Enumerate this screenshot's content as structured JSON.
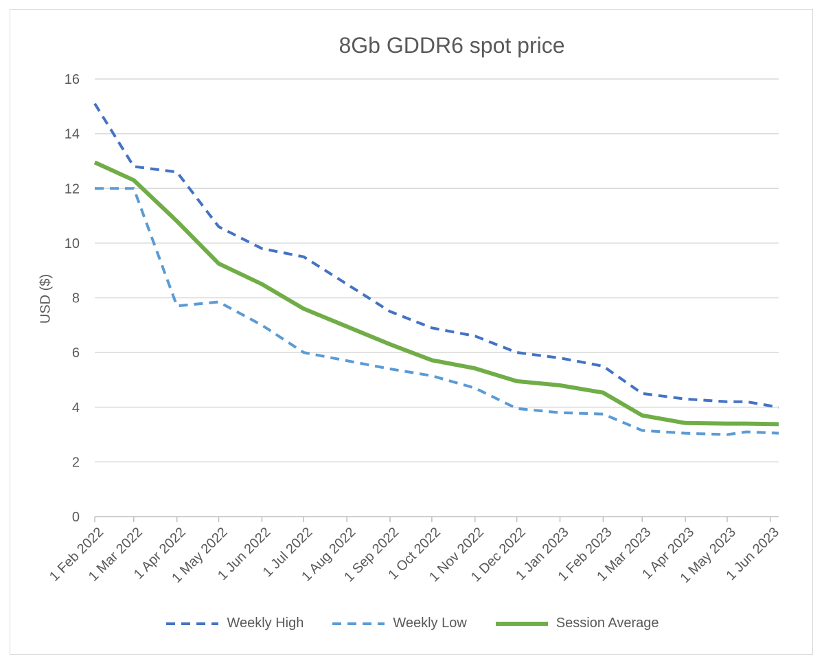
{
  "chart_data": {
    "type": "line",
    "title": "8Gb GDDR6 spot price",
    "xlabel": "",
    "ylabel": "USD ($)",
    "ylim": [
      0,
      16
    ],
    "yticks": [
      0,
      2,
      4,
      6,
      8,
      10,
      12,
      14,
      16
    ],
    "categories": [
      "1 Feb 2022",
      "1 Mar 2022",
      "1 Apr 2022",
      "1 May 2022",
      "1 Jun 2022",
      "1 Jul 2022",
      "1 Aug 2022",
      "1 Sep 2022",
      "1 Oct 2022",
      "1 Nov 2022",
      "1 Dec 2022",
      "1 Jan 2023",
      "1 Feb 2023",
      "1 Mar 2023",
      "1 Apr 2023",
      "1 May 2023",
      "1 Jun 2023"
    ],
    "x_range": [
      "2022-02-01",
      "2023-06-07"
    ],
    "grid": true,
    "legend_position": "bottom",
    "series": [
      {
        "name": "Weekly High",
        "color": "#4472c4",
        "style": "dashed",
        "points": [
          {
            "x": "2022-02-01",
            "y": 15.1
          },
          {
            "x": "2022-03-01",
            "y": 12.8
          },
          {
            "x": "2022-04-01",
            "y": 12.6
          },
          {
            "x": "2022-05-01",
            "y": 10.6
          },
          {
            "x": "2022-06-01",
            "y": 9.8
          },
          {
            "x": "2022-07-01",
            "y": 9.5
          },
          {
            "x": "2022-08-01",
            "y": 8.5
          },
          {
            "x": "2022-09-01",
            "y": 7.5
          },
          {
            "x": "2022-10-01",
            "y": 6.9
          },
          {
            "x": "2022-11-01",
            "y": 6.6
          },
          {
            "x": "2022-12-01",
            "y": 6.0
          },
          {
            "x": "2023-01-01",
            "y": 5.8
          },
          {
            "x": "2023-02-01",
            "y": 5.5
          },
          {
            "x": "2023-03-01",
            "y": 4.5
          },
          {
            "x": "2023-04-01",
            "y": 4.3
          },
          {
            "x": "2023-05-01",
            "y": 4.2
          },
          {
            "x": "2023-05-15",
            "y": 4.2
          },
          {
            "x": "2023-06-07",
            "y": 4.0
          }
        ]
      },
      {
        "name": "Weekly Low",
        "color": "#5b9bd5",
        "style": "dashed",
        "points": [
          {
            "x": "2022-02-01",
            "y": 12.0
          },
          {
            "x": "2022-03-01",
            "y": 12.0
          },
          {
            "x": "2022-04-01",
            "y": 7.7
          },
          {
            "x": "2022-05-01",
            "y": 7.85
          },
          {
            "x": "2022-06-01",
            "y": 7.0
          },
          {
            "x": "2022-07-01",
            "y": 6.0
          },
          {
            "x": "2022-08-01",
            "y": 5.7
          },
          {
            "x": "2022-09-01",
            "y": 5.4
          },
          {
            "x": "2022-10-01",
            "y": 5.15
          },
          {
            "x": "2022-11-01",
            "y": 4.7
          },
          {
            "x": "2022-12-01",
            "y": 3.95
          },
          {
            "x": "2023-01-01",
            "y": 3.8
          },
          {
            "x": "2023-02-01",
            "y": 3.75
          },
          {
            "x": "2023-03-01",
            "y": 3.15
          },
          {
            "x": "2023-04-01",
            "y": 3.05
          },
          {
            "x": "2023-05-01",
            "y": 3.0
          },
          {
            "x": "2023-05-15",
            "y": 3.1
          },
          {
            "x": "2023-06-07",
            "y": 3.05
          }
        ]
      },
      {
        "name": "Session Average",
        "color": "#70ad47",
        "style": "solid",
        "points": [
          {
            "x": "2022-02-01",
            "y": 12.95
          },
          {
            "x": "2022-03-01",
            "y": 12.3
          },
          {
            "x": "2022-04-01",
            "y": 10.8
          },
          {
            "x": "2022-05-01",
            "y": 9.25
          },
          {
            "x": "2022-06-01",
            "y": 8.5
          },
          {
            "x": "2022-07-01",
            "y": 7.6
          },
          {
            "x": "2022-08-01",
            "y": 6.95
          },
          {
            "x": "2022-09-01",
            "y": 6.3
          },
          {
            "x": "2022-10-01",
            "y": 5.72
          },
          {
            "x": "2022-11-01",
            "y": 5.42
          },
          {
            "x": "2022-12-01",
            "y": 4.95
          },
          {
            "x": "2023-01-01",
            "y": 4.8
          },
          {
            "x": "2023-02-01",
            "y": 4.53
          },
          {
            "x": "2023-03-01",
            "y": 3.7
          },
          {
            "x": "2023-04-01",
            "y": 3.42
          },
          {
            "x": "2023-05-01",
            "y": 3.4
          },
          {
            "x": "2023-05-15",
            "y": 3.4
          },
          {
            "x": "2023-06-07",
            "y": 3.38
          }
        ]
      }
    ]
  }
}
